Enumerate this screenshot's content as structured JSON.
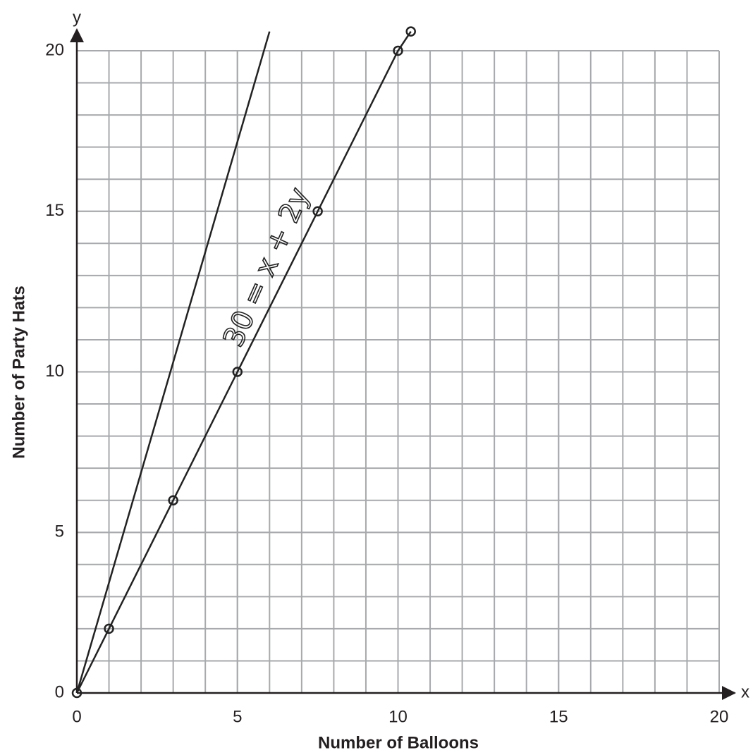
{
  "chart_data": {
    "type": "line",
    "x_label": "Number of Balloons",
    "y_label": "Number of Party Hats",
    "x_axis_name": "x",
    "y_axis_name": "y",
    "annotation": "30 = x + 2y",
    "xlim": [
      0,
      20
    ],
    "ylim": [
      0,
      20
    ],
    "xticks": [
      0,
      5,
      10,
      15,
      20
    ],
    "yticks": [
      0,
      5,
      10,
      15,
      20
    ],
    "grid": true,
    "grid_step": 1,
    "grid_color": "#a7a9ac",
    "series": [
      {
        "color": "#222222",
        "markers": true,
        "x": [
          0,
          1,
          3,
          5,
          7.5,
          10,
          10.4
        ],
        "values": [
          0,
          2,
          6,
          10,
          15,
          20,
          20.6
        ]
      },
      {
        "color": "#222222",
        "markers": false,
        "x": [
          0,
          6
        ],
        "values": [
          0,
          20.6
        ]
      }
    ]
  }
}
